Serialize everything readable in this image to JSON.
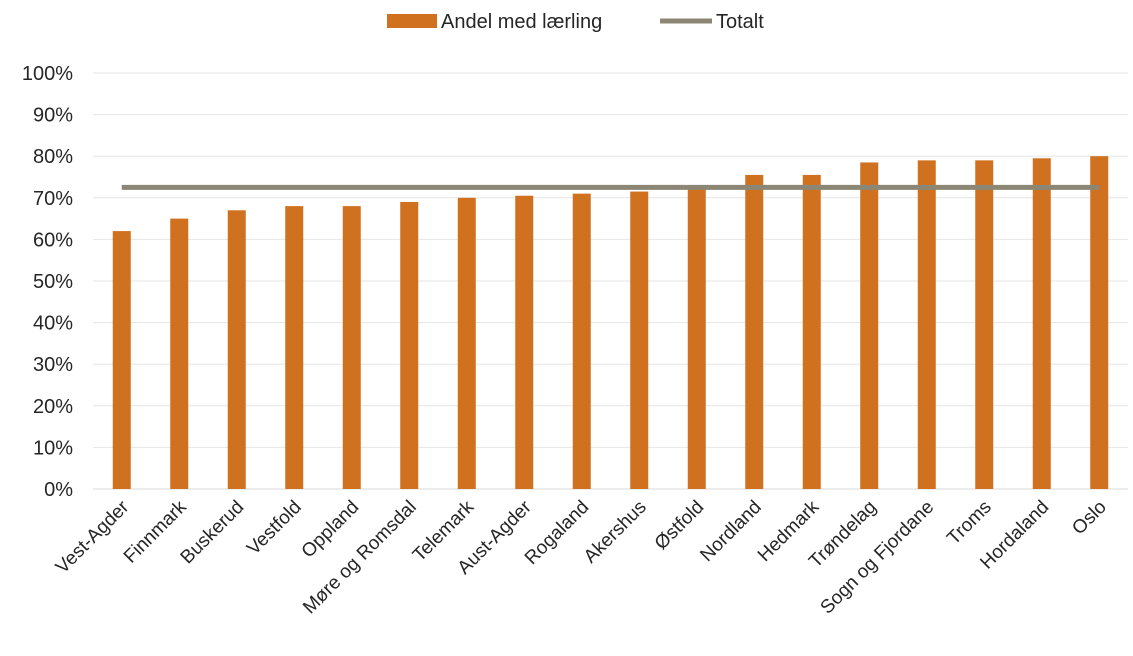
{
  "chart_data": {
    "type": "bar",
    "title": "",
    "xlabel": "",
    "ylabel": "",
    "categories": [
      "Vest-Agder",
      "Finnmark",
      "Buskerud",
      "Vestfold",
      "Oppland",
      "Møre og Romsdal",
      "Telemark",
      "Aust-Agder",
      "Rogaland",
      "Akershus",
      "Østfold",
      "Nordland",
      "Hedmark",
      "Trøndelag",
      "Sogn og Fjordane",
      "Troms",
      "Hordaland",
      "Oslo"
    ],
    "series": [
      {
        "name": "Andel med lærling",
        "type": "bar",
        "color": "#D0711F",
        "values": [
          62,
          65,
          67,
          68,
          68,
          69,
          70,
          70.5,
          71,
          71.5,
          72.5,
          75.5,
          75.5,
          78.5,
          79,
          79,
          79.5,
          80
        ]
      },
      {
        "name": "Totalt",
        "type": "line",
        "color": "#8C8774",
        "value": 72.5
      }
    ],
    "ylim": [
      0,
      100
    ],
    "yticks": [
      "0%",
      "10%",
      "20%",
      "30%",
      "40%",
      "50%",
      "60%",
      "70%",
      "80%",
      "90%",
      "100%"
    ],
    "grid": true,
    "legend_position": "top"
  }
}
